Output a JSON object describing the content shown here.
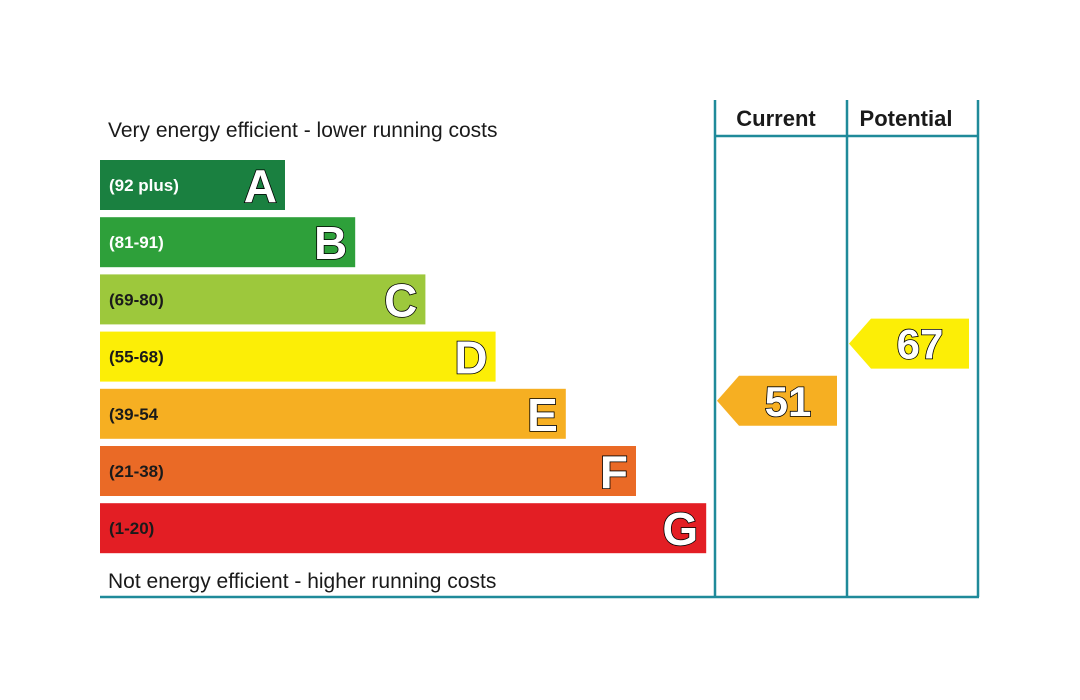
{
  "chart_data": {
    "type": "bar",
    "top_caption": "Very energy efficient - lower running costs",
    "bottom_caption": "Not energy efficient - higher running costs",
    "columns": {
      "current": "Current",
      "potential": "Potential"
    },
    "bands": [
      {
        "letter": "A",
        "range": "(92 plus)",
        "color": "#1a8040",
        "text_color": "#ffffff"
      },
      {
        "letter": "B",
        "range": "(81-91)",
        "color": "#2ea03a",
        "text_color": "#ffffff"
      },
      {
        "letter": "C",
        "range": "(69-80)",
        "color": "#9dc83c",
        "text_color": "#1a1a1a"
      },
      {
        "letter": "D",
        "range": "(55-68)",
        "color": "#fcee06",
        "text_color": "#1a1a1a"
      },
      {
        "letter": "E",
        "range": "(39-54",
        "color": "#f6af22",
        "text_color": "#1a1a1a"
      },
      {
        "letter": "F",
        "range": "(21-38)",
        "color": "#ea6a26",
        "text_color": "#1a1a1a"
      },
      {
        "letter": "G",
        "range": "(1-20)",
        "color": "#e31e24",
        "text_color": "#1a1a1a"
      }
    ],
    "current": {
      "value": "51",
      "band": "E",
      "color": "#f6af22"
    },
    "potential": {
      "value": "67",
      "band": "D",
      "color": "#fcee06"
    }
  }
}
